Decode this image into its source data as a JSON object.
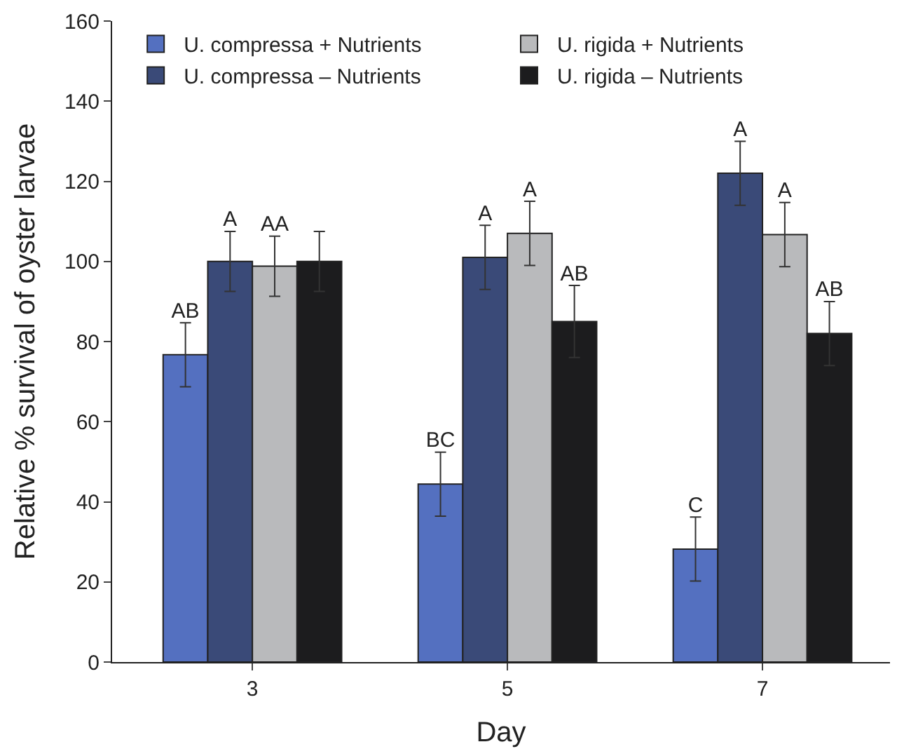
{
  "chart_data": {
    "type": "bar",
    "xlabel": "Day",
    "ylabel": "Relative % survival of oyster larvae",
    "categories": [
      "3",
      "5",
      "7"
    ],
    "series": [
      {
        "name": "U. compressa + Nutrients",
        "color": "#5470c0",
        "values": [
          76.7,
          44.4,
          28.2
        ],
        "errors": [
          8,
          8,
          8
        ],
        "value_labels": [
          "AB",
          "BC",
          "C"
        ]
      },
      {
        "name": "U. compressa – Nutrients",
        "color": "#3a4a78",
        "values": [
          100,
          101,
          122
        ],
        "errors": [
          7.5,
          8,
          8
        ],
        "value_labels": [
          "A",
          "A",
          "A"
        ]
      },
      {
        "name": "U. rigida + Nutrients",
        "color": "#b9babc",
        "values": [
          98.8,
          107,
          106.7
        ],
        "errors": [
          7.5,
          8,
          8
        ],
        "value_labels": [
          "AA",
          "A",
          "A"
        ]
      },
      {
        "name": "U. rigida – Nutrients",
        "color": "#1c1c1e",
        "values": [
          100,
          85,
          82
        ],
        "errors": [
          7.5,
          9,
          8
        ],
        "value_labels": [
          null,
          "AB",
          "AB"
        ]
      }
    ],
    "ylim": [
      0,
      160
    ],
    "yticks": [
      0,
      20,
      40,
      60,
      80,
      100,
      120,
      140,
      160
    ],
    "legend": "top left"
  }
}
